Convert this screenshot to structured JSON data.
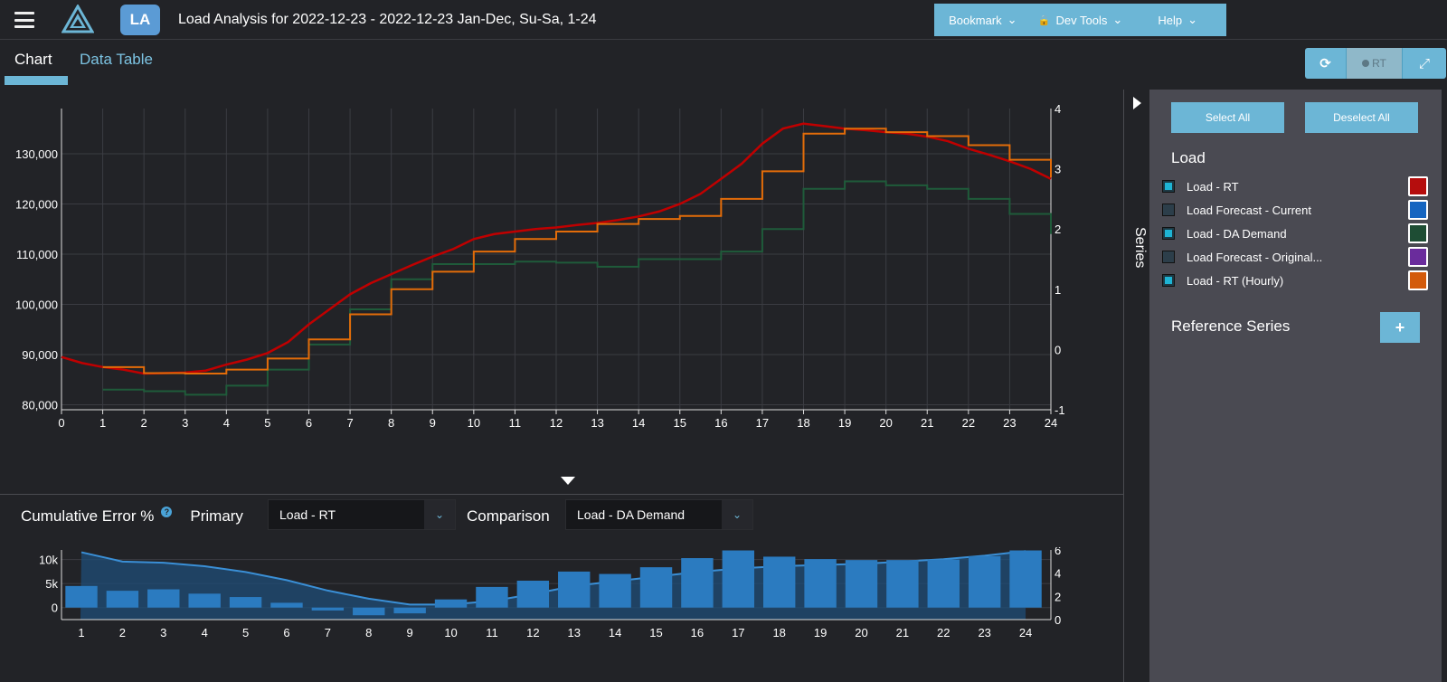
{
  "header": {
    "app_badge": "LA",
    "title": "Load Analysis for 2022-12-23 - 2022-12-23 Jan-Dec, Su-Sa, 1-24",
    "menu": [
      {
        "label": "Bookmark",
        "icon": "chevron-down-icon"
      },
      {
        "label": "Dev Tools",
        "icon": "lock-icon"
      },
      {
        "label": "Help",
        "icon": "chevron-down-icon"
      }
    ]
  },
  "tabs": [
    {
      "label": "Chart",
      "active": true
    },
    {
      "label": "Data Table",
      "active": false
    }
  ],
  "toolbar": {
    "refresh_icon": "refresh-icon",
    "rt_label": "RT",
    "expand_icon": "expand-icon"
  },
  "main_chart": {
    "y_ticks": [
      "80,000",
      "90,000",
      "100,000",
      "110,000",
      "120,000",
      "130,000"
    ],
    "y2_ticks": [
      "-1",
      "0",
      "1",
      "2",
      "3",
      "4"
    ],
    "x_ticks": [
      "0",
      "1",
      "2",
      "3",
      "4",
      "5",
      "6",
      "7",
      "8",
      "9",
      "10",
      "11",
      "12",
      "13",
      "14",
      "15",
      "16",
      "17",
      "18",
      "19",
      "20",
      "21",
      "22",
      "23",
      "24"
    ]
  },
  "chart_data": [
    {
      "type": "line",
      "ylim": [
        79000,
        139000
      ],
      "y2lim": [
        -1,
        4
      ],
      "xlim": [
        0,
        24
      ],
      "grid": true,
      "series": [
        {
          "name": "Load - RT",
          "color": "#c00000",
          "style": "line",
          "x": [
            0,
            0.5,
            1,
            1.5,
            2,
            2.5,
            3,
            3.5,
            4,
            4.5,
            5,
            5.5,
            6,
            6.5,
            7,
            7.5,
            8,
            8.5,
            9,
            9.5,
            10,
            10.5,
            11,
            11.5,
            12,
            12.5,
            13,
            13.5,
            14,
            14.5,
            15,
            15.5,
            16,
            16.5,
            17,
            17.5,
            18,
            18.5,
            19,
            19.5,
            20,
            20.5,
            21,
            21.5,
            22,
            22.5,
            23,
            23.5,
            24
          ],
          "y": [
            89500,
            88300,
            87500,
            87000,
            86200,
            86300,
            86400,
            86800,
            88000,
            89000,
            90300,
            92500,
            96000,
            99000,
            102000,
            104200,
            106000,
            107800,
            109500,
            111000,
            113000,
            114000,
            114500,
            115000,
            115300,
            115800,
            116200,
            116800,
            117500,
            118500,
            120000,
            122000,
            125000,
            128000,
            132000,
            135000,
            136000,
            135500,
            135000,
            134700,
            134300,
            134000,
            133400,
            132500,
            131000,
            129800,
            128500,
            127000,
            125000
          ]
        },
        {
          "name": "Load - DA Demand",
          "color": "#1f5b3a",
          "style": "step",
          "x": [
            1,
            2,
            3,
            4,
            5,
            6,
            7,
            8,
            9,
            10,
            11,
            12,
            13,
            14,
            15,
            16,
            17,
            18,
            19,
            20,
            21,
            22,
            23,
            24
          ],
          "y": [
            83000,
            82700,
            82000,
            83800,
            87000,
            92000,
            99000,
            105000,
            108000,
            108000,
            108500,
            108300,
            107500,
            109000,
            109000,
            110500,
            115000,
            123000,
            124500,
            123700,
            123000,
            121000,
            118000,
            114000
          ]
        },
        {
          "name": "Load - RT (Hourly)",
          "color": "#e36c09",
          "style": "step",
          "x": [
            1,
            2,
            3,
            4,
            5,
            6,
            7,
            8,
            9,
            10,
            11,
            12,
            13,
            14,
            15,
            16,
            17,
            18,
            19,
            20,
            21,
            22,
            23,
            24
          ],
          "y": [
            87500,
            86300,
            86200,
            87000,
            89200,
            93000,
            98000,
            103000,
            106500,
            110500,
            113000,
            114500,
            116000,
            117000,
            117600,
            121000,
            126500,
            134000,
            135000,
            134300,
            133500,
            131700,
            128800,
            125300
          ]
        }
      ]
    },
    {
      "type": "bar",
      "title": "Cumulative Error %",
      "categories": [
        "1",
        "2",
        "3",
        "4",
        "5",
        "6",
        "7",
        "8",
        "9",
        "10",
        "11",
        "12",
        "13",
        "14",
        "15",
        "16",
        "17",
        "18",
        "19",
        "20",
        "21",
        "22",
        "23",
        "24"
      ],
      "ylim": [
        -2500,
        12000
      ],
      "y2lim": [
        0,
        6
      ],
      "y_ticks": [
        "0",
        "5k",
        "10k"
      ],
      "y2_ticks": [
        "0",
        "2",
        "4",
        "6"
      ],
      "series": [
        {
          "name": "Error",
          "color": "#2b7bc0",
          "type": "bar",
          "values": [
            4500,
            3500,
            3800,
            2900,
            2200,
            1000,
            -600,
            -1600,
            -1200,
            1700,
            4300,
            5600,
            7500,
            7000,
            8400,
            10300,
            11900,
            10600,
            10100,
            9900,
            9900,
            10000,
            10700,
            11900
          ]
        },
        {
          "name": "Cumulative",
          "color": "#2b7bc0",
          "type": "area",
          "values": [
            5.8,
            5.0,
            4.9,
            4.6,
            4.1,
            3.4,
            2.5,
            1.8,
            1.3,
            1.3,
            1.6,
            2.2,
            2.9,
            3.3,
            3.7,
            4.1,
            4.4,
            4.6,
            4.7,
            4.8,
            5.0,
            5.2,
            5.5,
            5.9
          ]
        }
      ]
    }
  ],
  "cumulative": {
    "title": "Cumulative Error %",
    "help_icon": "?",
    "primary_label": "Primary",
    "primary_value": "Load - RT",
    "comparison_label": "Comparison",
    "comparison_value": "Load - DA Demand"
  },
  "panel": {
    "strip_label": "Series",
    "select_all": "Select All",
    "deselect_all": "Deselect All",
    "load_heading": "Load",
    "items": [
      {
        "label": "Load - RT",
        "checked": true,
        "color": "#b50d0d"
      },
      {
        "label": "Load Forecast - Current",
        "checked": false,
        "color": "#1565c0"
      },
      {
        "label": "Load - DA Demand",
        "checked": true,
        "color": "#1e4d34"
      },
      {
        "label": "Load Forecast - Original...",
        "checked": false,
        "color": "#6a2c9c"
      },
      {
        "label": "Load - RT (Hourly)",
        "checked": true,
        "color": "#d35a0b"
      }
    ],
    "reference_heading": "Reference Series",
    "add_label": "+"
  }
}
